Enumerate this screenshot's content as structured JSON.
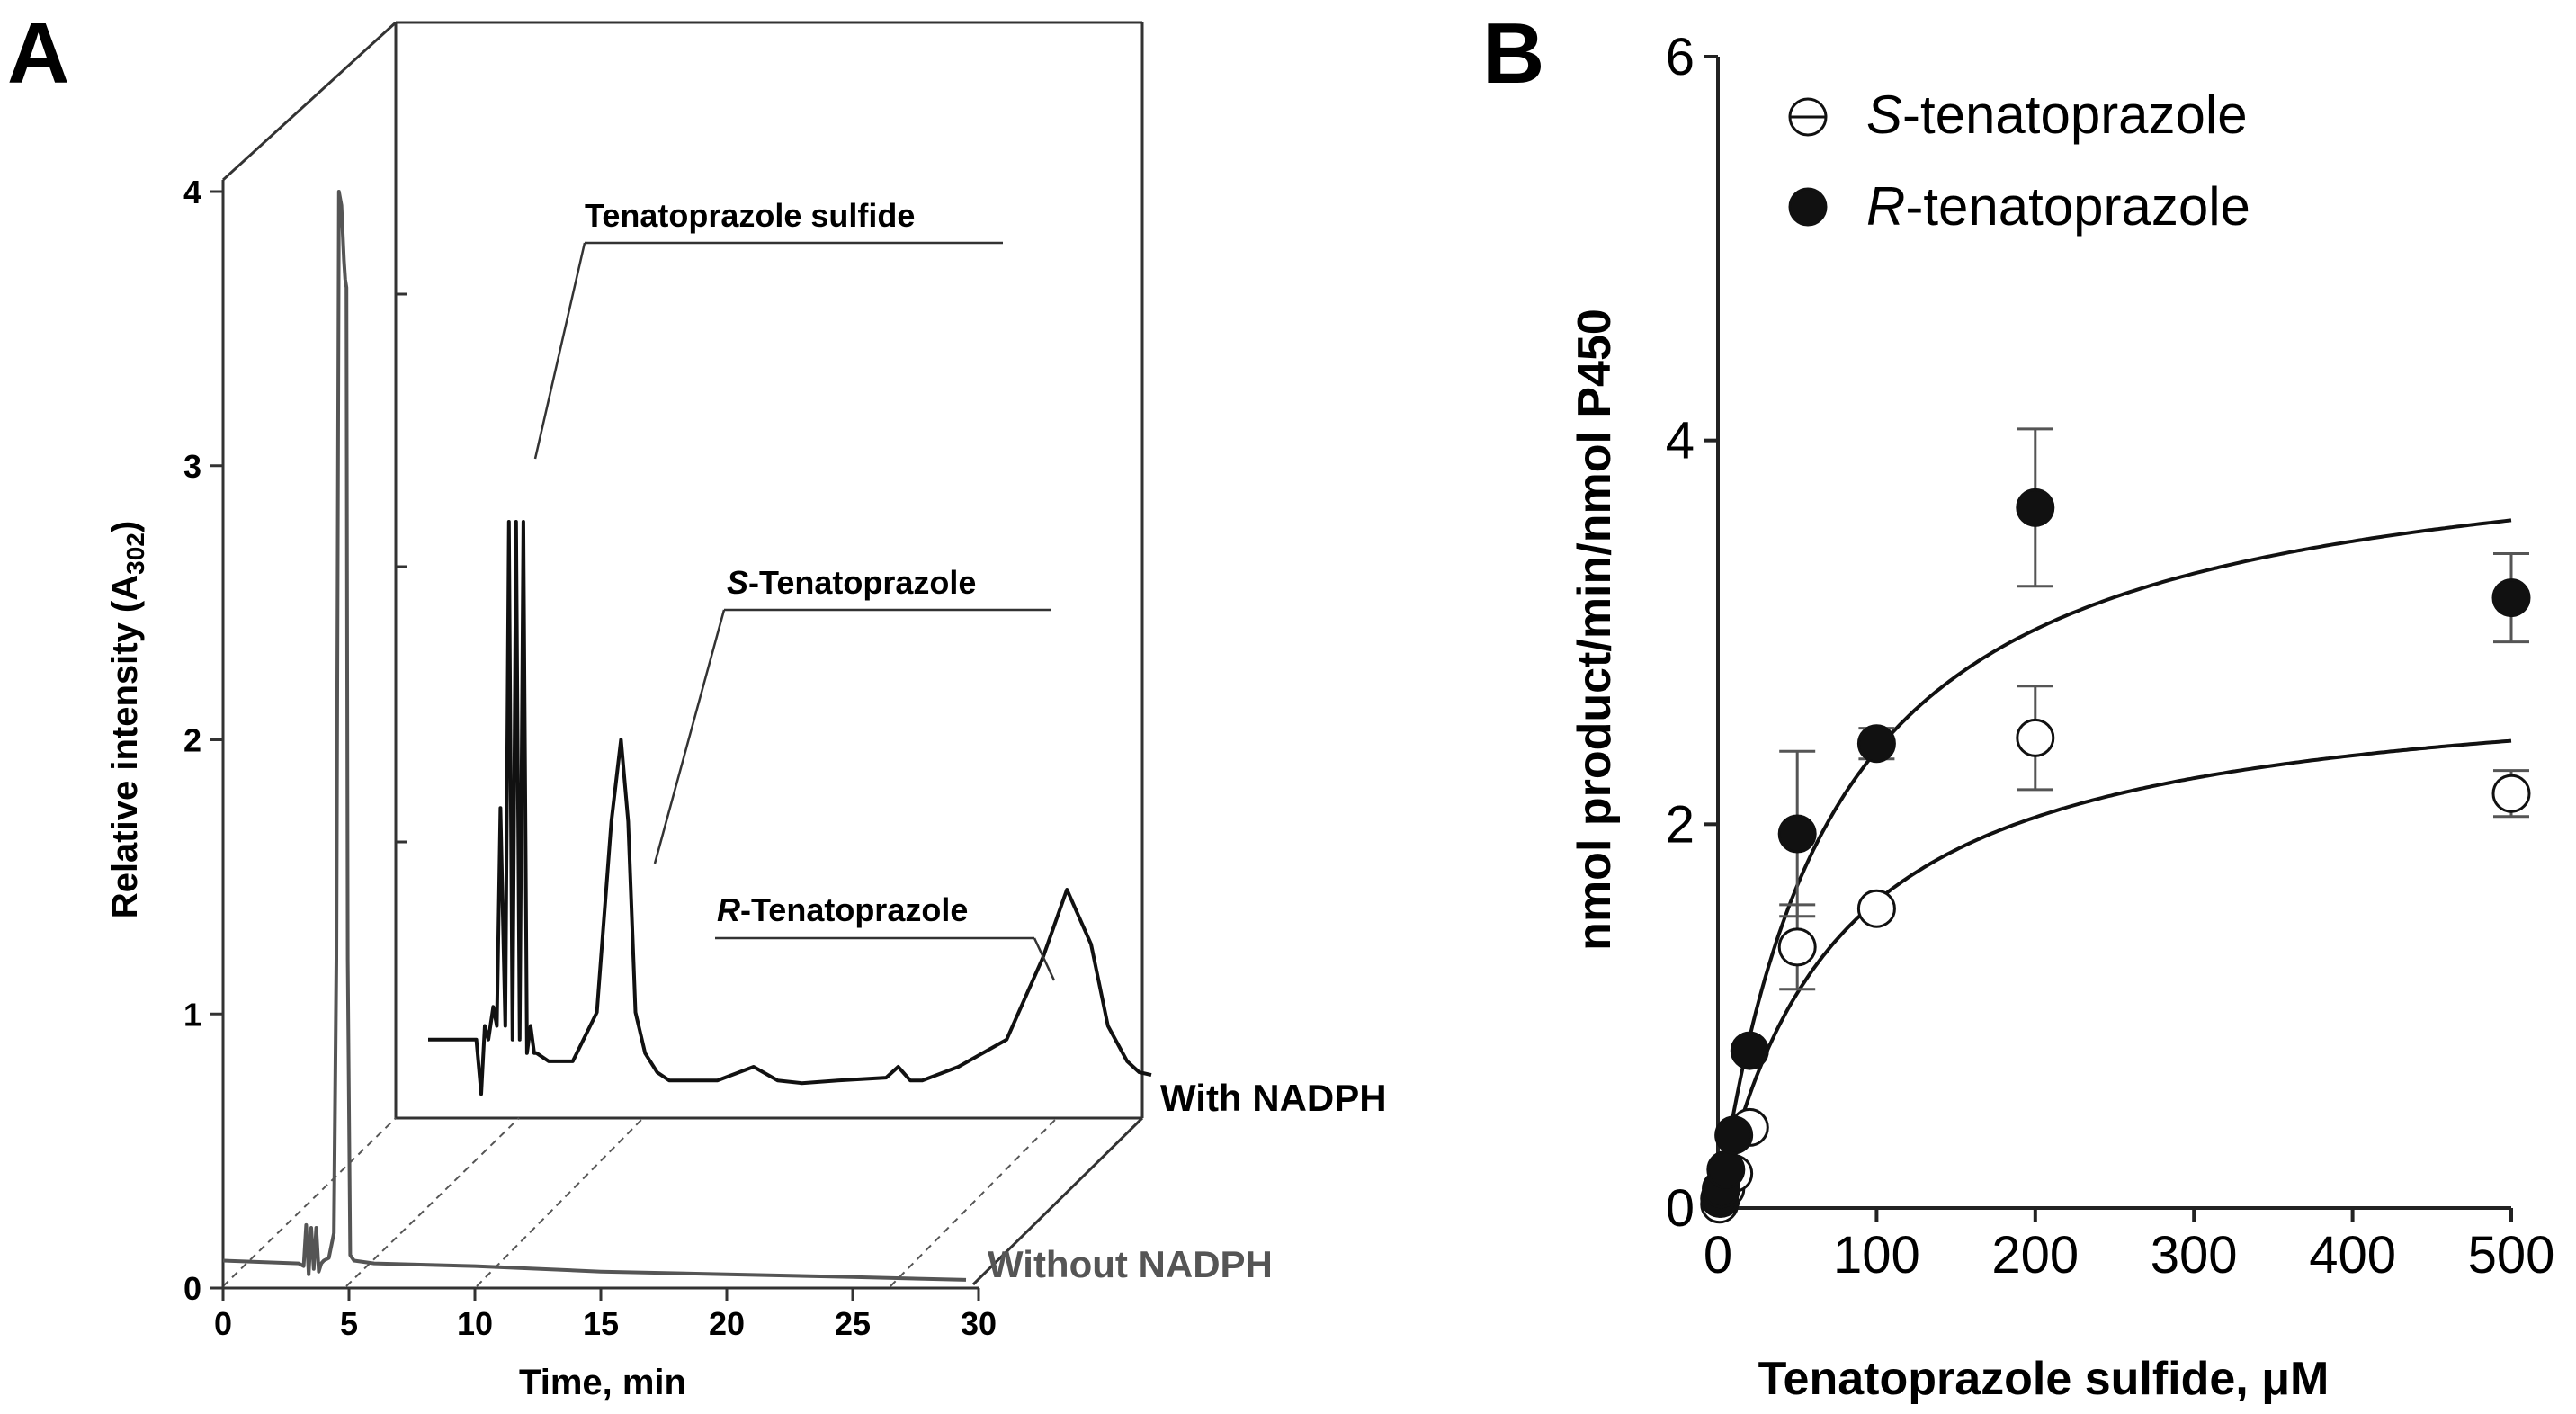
{
  "panel_a": {
    "letter": "A",
    "y_label_prefix": "Relative intensity (A",
    "y_label_sub": "302",
    "y_label_suffix": ")",
    "x_label": "Time, min",
    "front_label": "Without NADPH",
    "back_label": "With NADPH",
    "peaks": {
      "sulfide": "Tenatoprazole sulfide",
      "s_prefix": "S",
      "s_rest": "-Tenatoprazole",
      "r_prefix": "R",
      "r_rest": "-Tenatoprazole"
    }
  },
  "panel_b": {
    "letter": "B",
    "y_label": "nmol product/min/nmol P450",
    "x_label": "Tenatoprazole sulfide, μM",
    "legend": [
      {
        "prefix": "S",
        "rest": "-tenatoprazole"
      },
      {
        "prefix": "R",
        "rest": "-tenatoprazole"
      }
    ]
  },
  "chart_data": [
    {
      "type": "line",
      "panel": "A",
      "title": "",
      "xlabel": "Time, min",
      "ylabel": "Relative intensity (A302)",
      "xlim": [
        0,
        30
      ],
      "ylim": [
        0,
        4
      ],
      "xticks": [
        0,
        5,
        10,
        15,
        20,
        25,
        30
      ],
      "yticks": [
        0,
        1,
        2,
        3,
        4
      ],
      "series": [
        {
          "name": "Without NADPH",
          "color": "#555555",
          "x": [
            0,
            3.0,
            3.2,
            3.3,
            3.4,
            3.5,
            3.6,
            3.7,
            3.8,
            3.9,
            4.0,
            4.2,
            4.4,
            4.5,
            4.6,
            4.7,
            4.8,
            4.85,
            4.9,
            4.95,
            5.05,
            5.2,
            6,
            10,
            15,
            20,
            25,
            29.5
          ],
          "y": [
            0.1,
            0.09,
            0.08,
            0.23,
            0.05,
            0.22,
            0.07,
            0.22,
            0.06,
            0.09,
            0.1,
            0.11,
            0.2,
            1.2,
            4.0,
            3.95,
            3.75,
            3.68,
            3.65,
            1.2,
            0.12,
            0.1,
            0.09,
            0.08,
            0.06,
            0.05,
            0.04,
            0.03
          ]
        },
        {
          "name": "With NADPH",
          "color": "#111111",
          "x": [
            0,
            2.0,
            2.2,
            2.35,
            2.5,
            2.7,
            2.85,
            3.0,
            3.2,
            3.35,
            3.5,
            3.65,
            3.8,
            3.95,
            4.1,
            4.25,
            4.4,
            4.5,
            5,
            6,
            7,
            7.6,
            8.0,
            8.3,
            8.6,
            9.0,
            9.5,
            10,
            12,
            13.5,
            14.5,
            15.5,
            17,
            19,
            19.5,
            20,
            20.5,
            22,
            24,
            25.5,
            26.5,
            27.5,
            28.2,
            29,
            29.5,
            30
          ],
          "y": [
            0.1,
            0.1,
            -0.1,
            0.15,
            0.1,
            0.22,
            0.15,
            0.95,
            0.15,
            2.0,
            0.1,
            2.0,
            0.1,
            2.0,
            0.05,
            0.15,
            0.05,
            0.05,
            0.02,
            0.02,
            0.2,
            0.9,
            1.2,
            0.9,
            0.2,
            0.05,
            -0.02,
            -0.05,
            -0.05,
            0.0,
            -0.05,
            -0.06,
            -0.05,
            -0.04,
            0.0,
            -0.05,
            -0.05,
            0.0,
            0.1,
            0.4,
            0.65,
            0.45,
            0.15,
            0.02,
            -0.02,
            -0.03
          ]
        }
      ],
      "annotations": [
        "Tenatoprazole sulfide",
        "S-Tenatoprazole",
        "R-Tenatoprazole",
        "With NADPH",
        "Without NADPH"
      ]
    },
    {
      "type": "scatter",
      "panel": "B",
      "title": "",
      "xlabel": "Tenatoprazole sulfide, μM",
      "ylabel": "nmol product/min/nmol P450",
      "xlim": [
        0,
        500
      ],
      "ylim": [
        0,
        6
      ],
      "xticks": [
        0,
        100,
        200,
        300,
        400,
        500
      ],
      "yticks": [
        0,
        2,
        4,
        6
      ],
      "series": [
        {
          "name": "S-tenatoprazole",
          "marker": "open-circle",
          "x": [
            1,
            2,
            5,
            10,
            20,
            50,
            100,
            200,
            500
          ],
          "y": [
            0.02,
            0.05,
            0.1,
            0.18,
            0.42,
            1.36,
            1.56,
            2.45,
            2.16
          ],
          "err": [
            0,
            0,
            0,
            0,
            0,
            0.22,
            0,
            0.27,
            0.12
          ],
          "fit": {
            "model": "Michaelis-Menten",
            "vmax": 2.8,
            "km": 75
          }
        },
        {
          "name": "R-tenatoprazole",
          "marker": "filled-circle",
          "x": [
            1,
            2,
            5,
            10,
            20,
            50,
            100,
            200,
            500
          ],
          "y": [
            0.05,
            0.1,
            0.2,
            0.38,
            0.82,
            1.95,
            2.42,
            3.65,
            3.18
          ],
          "err": [
            0,
            0,
            0,
            0,
            0,
            0.43,
            0.08,
            0.41,
            0.23
          ],
          "fit": {
            "model": "Michaelis-Menten",
            "vmax": 4.1,
            "km": 72
          }
        }
      ]
    }
  ]
}
